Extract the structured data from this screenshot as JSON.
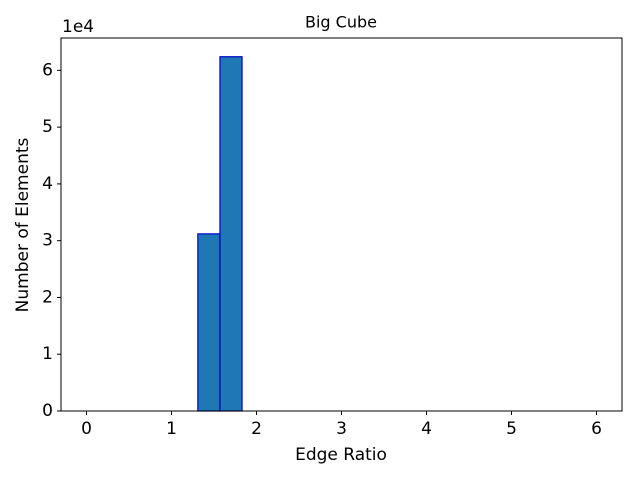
{
  "chart_data": {
    "type": "histogram",
    "title": "Big Cube",
    "x_label": "Edge Ratio",
    "y_label": "Number of Elements",
    "bins": [
      1.31,
      1.57,
      1.83
    ],
    "values": [
      31200,
      62400
    ],
    "color": "#1f77b4",
    "edgecolor": "#0000cc",
    "xlim": [
      -0.3,
      6.3
    ],
    "xticks": [
      0,
      1,
      2,
      3,
      4,
      5,
      6
    ],
    "ylim": [
      0,
      65700
    ],
    "y_offset_label": "1e4",
    "yticks": [
      0,
      {
        "value": 10000,
        "label": "1"
      },
      {
        "value": 20000,
        "label": "2"
      },
      {
        "value": 30000,
        "label": "3"
      },
      {
        "value": 40000,
        "label": "4"
      },
      {
        "value": 50000,
        "label": "5"
      },
      {
        "value": 60000,
        "label": "6"
      }
    ],
    "grid": false
  }
}
